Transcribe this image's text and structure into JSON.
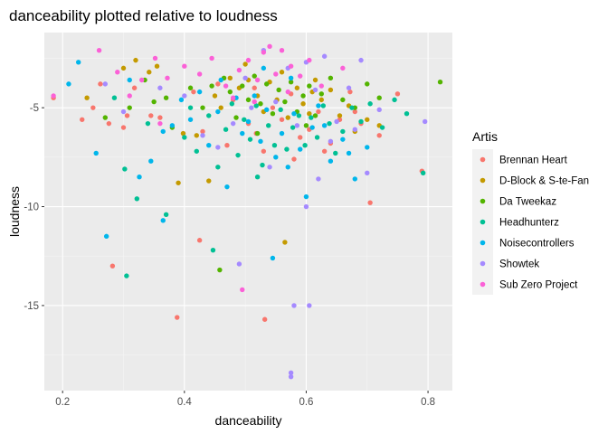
{
  "chart_data": {
    "type": "scatter",
    "title": "danceability plotted relative to loudness",
    "xlabel": "danceability",
    "ylabel": "loudness",
    "xlim": [
      0.17,
      0.84
    ],
    "ylim": [
      -19.3,
      -1.2
    ],
    "x_ticks": [
      0.2,
      0.4,
      0.6,
      0.8
    ],
    "x_tick_labels": [
      "0.2",
      "0.4",
      "0.6",
      "0.8"
    ],
    "y_ticks": [
      -5,
      -10,
      -15
    ],
    "y_tick_labels": [
      "-5",
      "-10",
      "-15"
    ],
    "grid": true,
    "legend_title": "Artis",
    "legend_position": "right",
    "series": [
      {
        "name": "Brennan Heart",
        "color": "#F8766D",
        "points": [
          [
            0.185,
            -4.5
          ],
          [
            0.232,
            -5.6
          ],
          [
            0.25,
            -5.0
          ],
          [
            0.262,
            -3.8
          ],
          [
            0.276,
            -5.8
          ],
          [
            0.282,
            -13.0
          ],
          [
            0.306,
            -5.4
          ],
          [
            0.318,
            -4.0
          ],
          [
            0.345,
            -5.4
          ],
          [
            0.388,
            -15.6
          ],
          [
            0.415,
            -4.2
          ],
          [
            0.425,
            -11.7
          ],
          [
            0.455,
            -3.8
          ],
          [
            0.48,
            -4.6
          ],
          [
            0.505,
            -5.8
          ],
          [
            0.518,
            -6.3
          ],
          [
            0.532,
            -15.7
          ],
          [
            0.545,
            -5.0
          ],
          [
            0.56,
            -5.6
          ],
          [
            0.575,
            -4.3
          ],
          [
            0.59,
            -6.5
          ],
          [
            0.605,
            -6.1
          ],
          [
            0.62,
            -5.2
          ],
          [
            0.64,
            -6.8
          ],
          [
            0.655,
            -5.6
          ],
          [
            0.672,
            -4.2
          ],
          [
            0.69,
            -5.8
          ],
          [
            0.705,
            -9.8
          ],
          [
            0.72,
            -6.4
          ],
          [
            0.75,
            -4.3
          ],
          [
            0.79,
            -8.2
          ],
          [
            0.3,
            -6.0
          ],
          [
            0.36,
            -5.5
          ],
          [
            0.47,
            -6.9
          ],
          [
            0.53,
            -7.2
          ],
          [
            0.58,
            -7.6
          ],
          [
            0.63,
            -7.2
          ],
          [
            0.68,
            -5.2
          ],
          [
            0.43,
            -6.2
          ],
          [
            0.515,
            -4.0
          ]
        ]
      },
      {
        "name": "D-Block & S-te-Fan",
        "color": "#C49A00",
        "points": [
          [
            0.24,
            -4.5
          ],
          [
            0.3,
            -3.0
          ],
          [
            0.32,
            -2.6
          ],
          [
            0.342,
            -3.2
          ],
          [
            0.39,
            -8.8
          ],
          [
            0.398,
            -6.3
          ],
          [
            0.42,
            -6.4
          ],
          [
            0.44,
            -8.7
          ],
          [
            0.46,
            -5.0
          ],
          [
            0.475,
            -3.5
          ],
          [
            0.49,
            -4.0
          ],
          [
            0.505,
            -3.6
          ],
          [
            0.52,
            -4.4
          ],
          [
            0.53,
            -5.2
          ],
          [
            0.54,
            -3.7
          ],
          [
            0.552,
            -4.6
          ],
          [
            0.565,
            -11.8
          ],
          [
            0.57,
            -5.5
          ],
          [
            0.585,
            -4.0
          ],
          [
            0.595,
            -4.8
          ],
          [
            0.605,
            -5.3
          ],
          [
            0.615,
            -3.6
          ],
          [
            0.625,
            -4.6
          ],
          [
            0.64,
            -4.1
          ],
          [
            0.655,
            -5.4
          ],
          [
            0.67,
            -4.9
          ],
          [
            0.68,
            -6.2
          ],
          [
            0.7,
            -5.6
          ],
          [
            0.72,
            -5.9
          ],
          [
            0.355,
            -2.9
          ],
          [
            0.45,
            -4.4
          ],
          [
            0.5,
            -2.8
          ],
          [
            0.56,
            -3.2
          ],
          [
            0.61,
            -4.2
          ]
        ]
      },
      {
        "name": "Da Tweekaz",
        "color": "#53B400",
        "points": [
          [
            0.27,
            -5.5
          ],
          [
            0.31,
            -5.0
          ],
          [
            0.335,
            -3.6
          ],
          [
            0.35,
            -4.7
          ],
          [
            0.37,
            -4.5
          ],
          [
            0.41,
            -4.0
          ],
          [
            0.43,
            -5.0
          ],
          [
            0.445,
            -3.9
          ],
          [
            0.458,
            -13.2
          ],
          [
            0.465,
            -3.5
          ],
          [
            0.475,
            -4.2
          ],
          [
            0.485,
            -5.5
          ],
          [
            0.495,
            -3.9
          ],
          [
            0.505,
            -4.6
          ],
          [
            0.515,
            -3.4
          ],
          [
            0.525,
            -4.8
          ],
          [
            0.535,
            -3.8
          ],
          [
            0.545,
            -5.3
          ],
          [
            0.555,
            -4.1
          ],
          [
            0.565,
            -4.7
          ],
          [
            0.575,
            -3.7
          ],
          [
            0.585,
            -5.2
          ],
          [
            0.595,
            -4.4
          ],
          [
            0.605,
            -3.9
          ],
          [
            0.615,
            -5.4
          ],
          [
            0.625,
            -4.3
          ],
          [
            0.64,
            -3.5
          ],
          [
            0.66,
            -4.6
          ],
          [
            0.68,
            -5.0
          ],
          [
            0.7,
            -3.8
          ],
          [
            0.72,
            -4.5
          ],
          [
            0.82,
            -3.7
          ],
          [
            0.38,
            -6.0
          ],
          [
            0.52,
            -6.3
          ],
          [
            0.6,
            -5.9
          ]
        ]
      },
      {
        "name": "Headhunterz",
        "color": "#00C094",
        "points": [
          [
            0.285,
            -4.5
          ],
          [
            0.302,
            -8.1
          ],
          [
            0.305,
            -13.5
          ],
          [
            0.322,
            -9.6
          ],
          [
            0.34,
            -5.8
          ],
          [
            0.37,
            -10.4
          ],
          [
            0.4,
            -6.5
          ],
          [
            0.42,
            -7.2
          ],
          [
            0.44,
            -5.4
          ],
          [
            0.447,
            -12.2
          ],
          [
            0.455,
            -8.0
          ],
          [
            0.468,
            -6.1
          ],
          [
            0.478,
            -4.8
          ],
          [
            0.488,
            -7.4
          ],
          [
            0.498,
            -5.6
          ],
          [
            0.508,
            -6.6
          ],
          [
            0.518,
            -4.9
          ],
          [
            0.528,
            -7.9
          ],
          [
            0.538,
            -5.9
          ],
          [
            0.548,
            -6.9
          ],
          [
            0.558,
            -5.1
          ],
          [
            0.568,
            -7.1
          ],
          [
            0.578,
            -6.0
          ],
          [
            0.588,
            -5.4
          ],
          [
            0.598,
            -6.9
          ],
          [
            0.608,
            -5.5
          ],
          [
            0.618,
            -6.5
          ],
          [
            0.628,
            -4.9
          ],
          [
            0.638,
            -5.8
          ],
          [
            0.648,
            -7.3
          ],
          [
            0.66,
            -6.2
          ],
          [
            0.675,
            -5.0
          ],
          [
            0.69,
            -5.7
          ],
          [
            0.705,
            -4.8
          ],
          [
            0.725,
            -6.0
          ],
          [
            0.745,
            -4.6
          ],
          [
            0.765,
            -5.3
          ],
          [
            0.792,
            -8.3
          ],
          [
            0.41,
            -5.0
          ],
          [
            0.52,
            -8.5
          ]
        ]
      },
      {
        "name": "Noisecontrollers",
        "color": "#00B6EB",
        "points": [
          [
            0.21,
            -3.8
          ],
          [
            0.226,
            -2.7
          ],
          [
            0.255,
            -7.3
          ],
          [
            0.272,
            -11.5
          ],
          [
            0.31,
            -3.6
          ],
          [
            0.326,
            -8.5
          ],
          [
            0.345,
            -7.7
          ],
          [
            0.365,
            -10.7
          ],
          [
            0.38,
            -5.9
          ],
          [
            0.395,
            -4.6
          ],
          [
            0.41,
            -5.6
          ],
          [
            0.425,
            -4.2
          ],
          [
            0.44,
            -6.9
          ],
          [
            0.455,
            -5.2
          ],
          [
            0.47,
            -9.0
          ],
          [
            0.485,
            -4.5
          ],
          [
            0.495,
            -6.3
          ],
          [
            0.505,
            -5.7
          ],
          [
            0.515,
            -4.4
          ],
          [
            0.525,
            -6.7
          ],
          [
            0.535,
            -5.1
          ],
          [
            0.545,
            -12.6
          ],
          [
            0.55,
            -7.5
          ],
          [
            0.56,
            -6.3
          ],
          [
            0.57,
            -8.0
          ],
          [
            0.58,
            -5.3
          ],
          [
            0.59,
            -7.1
          ],
          [
            0.6,
            -9.5
          ],
          [
            0.61,
            -6.0
          ],
          [
            0.62,
            -4.9
          ],
          [
            0.64,
            -7.7
          ],
          [
            0.66,
            -6.6
          ],
          [
            0.68,
            -8.6
          ],
          [
            0.7,
            -7.0
          ],
          [
            0.46,
            -3.6
          ],
          [
            0.53,
            -3.0
          ],
          [
            0.575,
            -3.5
          ],
          [
            0.63,
            -5.9
          ],
          [
            0.67,
            -7.3
          ],
          [
            0.365,
            -6.2
          ]
        ]
      },
      {
        "name": "Showtek",
        "color": "#A58AFF",
        "points": [
          [
            0.27,
            -3.8
          ],
          [
            0.3,
            -5.2
          ],
          [
            0.36,
            -4.0
          ],
          [
            0.4,
            -4.4
          ],
          [
            0.43,
            -6.4
          ],
          [
            0.48,
            -5.8
          ],
          [
            0.5,
            -3.5
          ],
          [
            0.51,
            -5.0
          ],
          [
            0.53,
            -2.1
          ],
          [
            0.55,
            -4.7
          ],
          [
            0.57,
            -3.0
          ],
          [
            0.575,
            -18.4
          ],
          [
            0.58,
            -15.0
          ],
          [
            0.585,
            -5.9
          ],
          [
            0.6,
            -10.0
          ],
          [
            0.605,
            -15.0
          ],
          [
            0.615,
            -4.1
          ],
          [
            0.62,
            -8.6
          ],
          [
            0.63,
            -2.4
          ],
          [
            0.64,
            -6.7
          ],
          [
            0.65,
            -5.7
          ],
          [
            0.67,
            -4.0
          ],
          [
            0.68,
            -6.1
          ],
          [
            0.69,
            -2.6
          ],
          [
            0.7,
            -8.3
          ],
          [
            0.72,
            -5.1
          ],
          [
            0.795,
            -5.7
          ],
          [
            0.49,
            -12.9
          ],
          [
            0.575,
            -18.6
          ],
          [
            0.54,
            -8.0
          ],
          [
            0.455,
            -7.0
          ],
          [
            0.6,
            -2.7
          ]
        ]
      },
      {
        "name": "Sub Zero Project",
        "color": "#FB61D7",
        "points": [
          [
            0.185,
            -4.4
          ],
          [
            0.26,
            -2.1
          ],
          [
            0.29,
            -3.2
          ],
          [
            0.31,
            -4.4
          ],
          [
            0.33,
            -3.6
          ],
          [
            0.352,
            -2.5
          ],
          [
            0.372,
            -3.5
          ],
          [
            0.4,
            -2.9
          ],
          [
            0.425,
            -3.3
          ],
          [
            0.445,
            -2.5
          ],
          [
            0.468,
            -3.9
          ],
          [
            0.49,
            -3.1
          ],
          [
            0.495,
            -14.2
          ],
          [
            0.505,
            -2.6
          ],
          [
            0.52,
            -3.6
          ],
          [
            0.53,
            -2.2
          ],
          [
            0.54,
            -1.9
          ],
          [
            0.55,
            -3.3
          ],
          [
            0.56,
            -2.1
          ],
          [
            0.575,
            -2.9
          ],
          [
            0.59,
            -3.4
          ],
          [
            0.605,
            -2.6
          ],
          [
            0.625,
            -3.9
          ],
          [
            0.66,
            -3.0
          ],
          [
            0.48,
            -4.5
          ],
          [
            0.36,
            -5.8
          ],
          [
            0.515,
            -4.7
          ],
          [
            0.57,
            -4.2
          ]
        ]
      }
    ]
  }
}
